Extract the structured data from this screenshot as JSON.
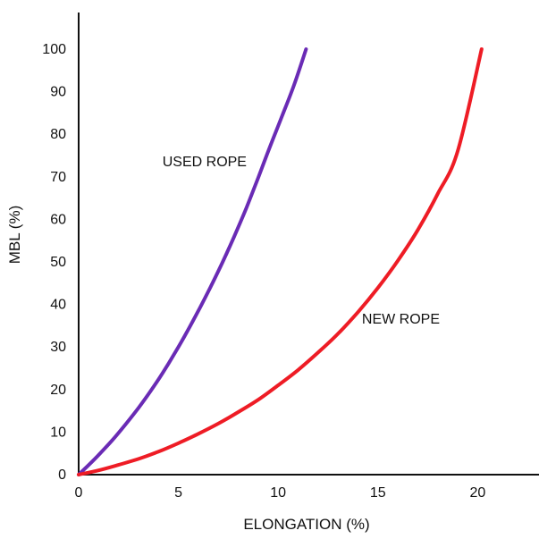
{
  "chart_data": {
    "type": "line",
    "title": "",
    "xlabel": "ELONGATION (%)",
    "ylabel": "MBL (%)",
    "xlim": [
      0,
      23
    ],
    "ylim": [
      0,
      105
    ],
    "x_ticks": [
      0,
      5,
      10,
      15,
      20
    ],
    "y_ticks": [
      0,
      10,
      20,
      30,
      40,
      50,
      60,
      70,
      80,
      90,
      100
    ],
    "grid": false,
    "legend": "none",
    "series": [
      {
        "name": "USED ROPE",
        "color": "#6a2bb5",
        "x": [
          0,
          0.6,
          1.2,
          1.8,
          2.4,
          3.0,
          3.6,
          4.2,
          4.8,
          5.4,
          6.0,
          6.6,
          7.2,
          7.8,
          8.4,
          9.0,
          9.6,
          10.2,
          10.8,
          11.4
        ],
        "y": [
          0,
          2.7,
          5.6,
          8.7,
          12.1,
          15.7,
          19.6,
          23.8,
          28.4,
          33.3,
          38.5,
          44.0,
          49.8,
          56.0,
          62.6,
          69.8,
          77.2,
          84.3,
          91.6,
          100
        ]
      },
      {
        "name": "NEW ROPE",
        "color": "#ee1c25",
        "x": [
          0,
          1,
          2,
          3,
          4,
          5,
          6,
          7,
          8,
          9,
          10,
          11,
          12,
          13,
          14,
          15,
          16,
          17,
          18,
          19,
          20.2
        ],
        "y": [
          0,
          1.0,
          2.3,
          3.7,
          5.4,
          7.4,
          9.6,
          12.0,
          14.7,
          17.6,
          21.0,
          24.6,
          28.7,
          33.1,
          38.2,
          43.9,
          50.3,
          57.5,
          66.0,
          76.0,
          100
        ]
      }
    ],
    "annotations": [
      {
        "text": "USED ROPE",
        "x": 4.2,
        "y": 72.5
      },
      {
        "text": "NEW ROPE",
        "x": 14.2,
        "y": 35.5
      }
    ]
  }
}
